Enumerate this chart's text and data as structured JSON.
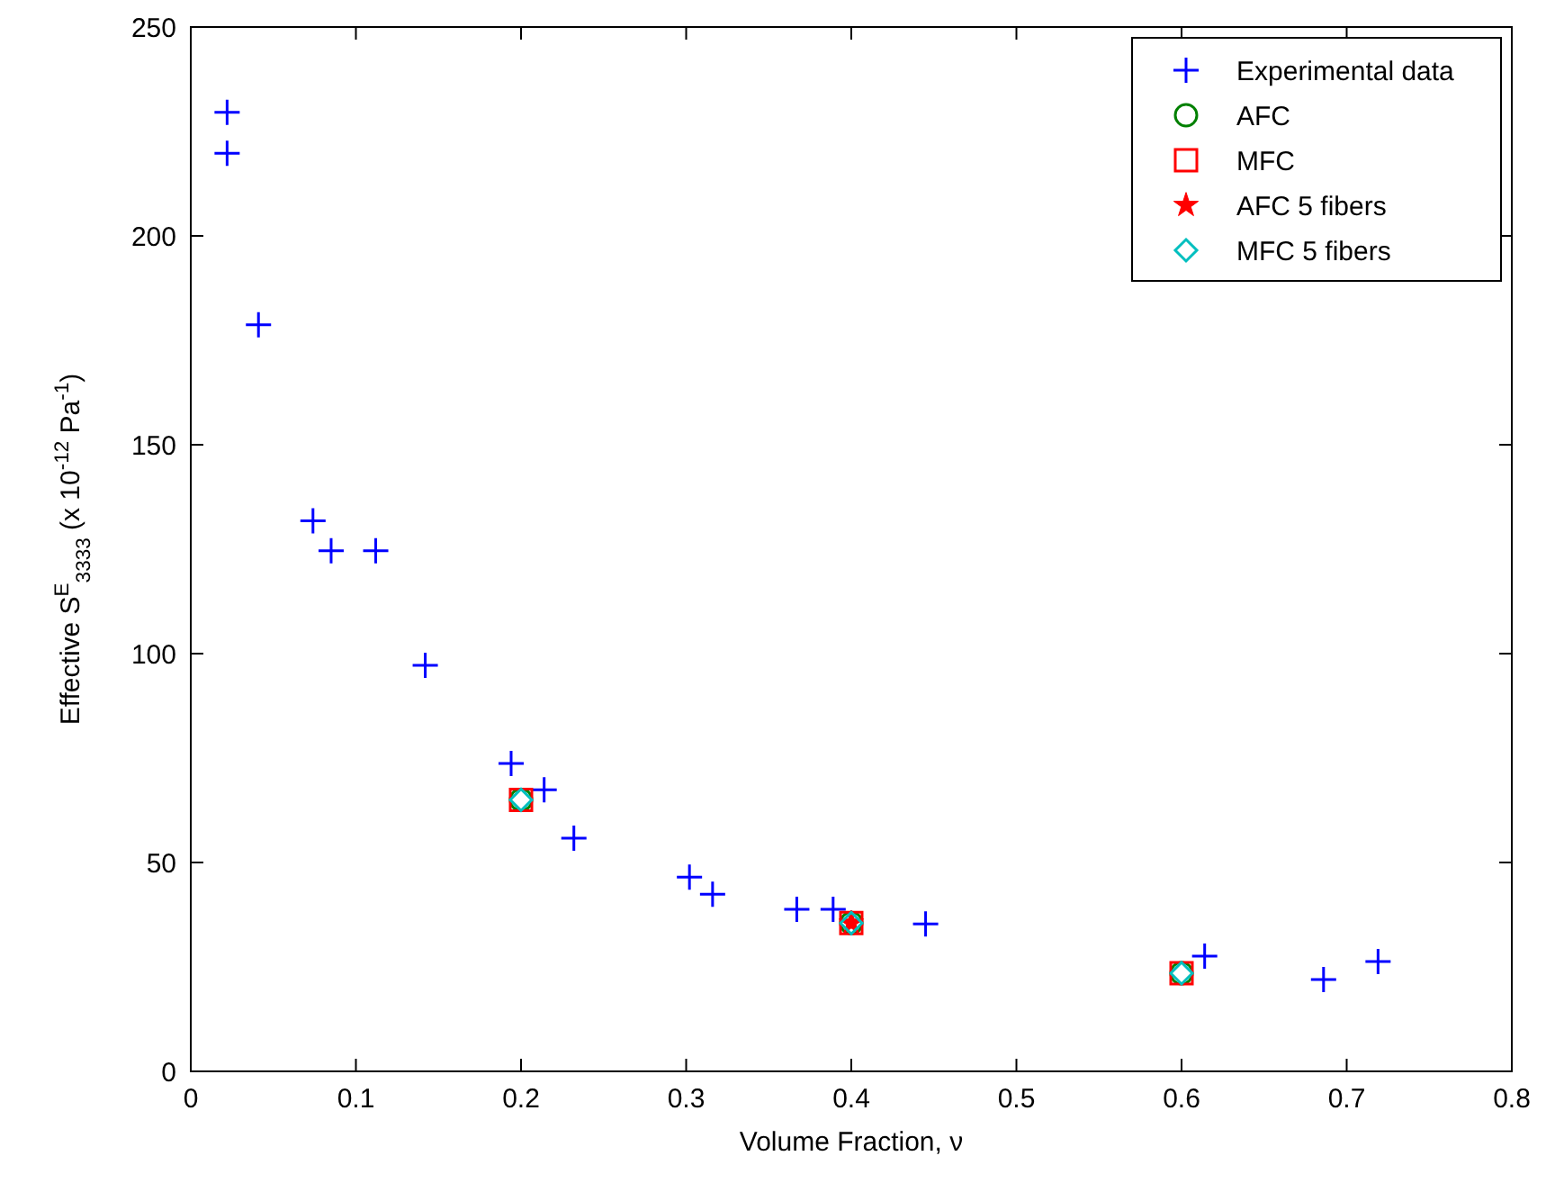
{
  "chart_data": {
    "type": "scatter",
    "xlabel": "Volume Fraction, ν",
    "ylabel": "Effective S$^{E}$$_{3333}$ (x 10$^{-12}$ Pa$^{-1}$)",
    "xlim": [
      0,
      0.8
    ],
    "ylim": [
      0,
      250
    ],
    "xticks": [
      0,
      0.1,
      0.2,
      0.3,
      0.4,
      0.5,
      0.6,
      0.7,
      0.8
    ],
    "yticks": [
      0,
      50,
      100,
      150,
      200,
      250
    ],
    "grid": false,
    "legend": "top right",
    "series": [
      {
        "name": "Experimental data",
        "color": "#0000ff",
        "marker": "cross",
        "x": [
          0.022,
          0.022,
          0.041,
          0.074,
          0.085,
          0.112,
          0.142,
          0.194,
          0.214,
          0.232,
          0.302,
          0.316,
          0.367,
          0.389,
          0.445,
          0.614,
          0.686,
          0.719
        ],
        "values": [
          229.6,
          219.8,
          178.7,
          131.8,
          124.6,
          124.6,
          97.2,
          73.7,
          67.4,
          55.8,
          46.5,
          42.4,
          38.8,
          38.8,
          35.3,
          27.6,
          22.0,
          26.3
        ]
      },
      {
        "name": "AFC",
        "color": "#008000",
        "marker": "circle",
        "x": [
          0.2,
          0.4,
          0.6
        ],
        "values": [
          65,
          35.5,
          23.5
        ]
      },
      {
        "name": "MFC",
        "color": "#ff0000",
        "marker": "square",
        "x": [
          0.2,
          0.4,
          0.6
        ],
        "values": [
          65,
          35.5,
          23.5
        ]
      },
      {
        "name": "AFC 5 fibers",
        "color": "#ff0000",
        "marker": "star",
        "x": [
          0.4
        ],
        "values": [
          35.5
        ]
      },
      {
        "name": "MFC 5 fibers",
        "color": "#00bfbf",
        "marker": "diamond",
        "x": [
          0.2,
          0.4,
          0.6
        ],
        "values": [
          65,
          35.5,
          23.5
        ]
      }
    ]
  }
}
